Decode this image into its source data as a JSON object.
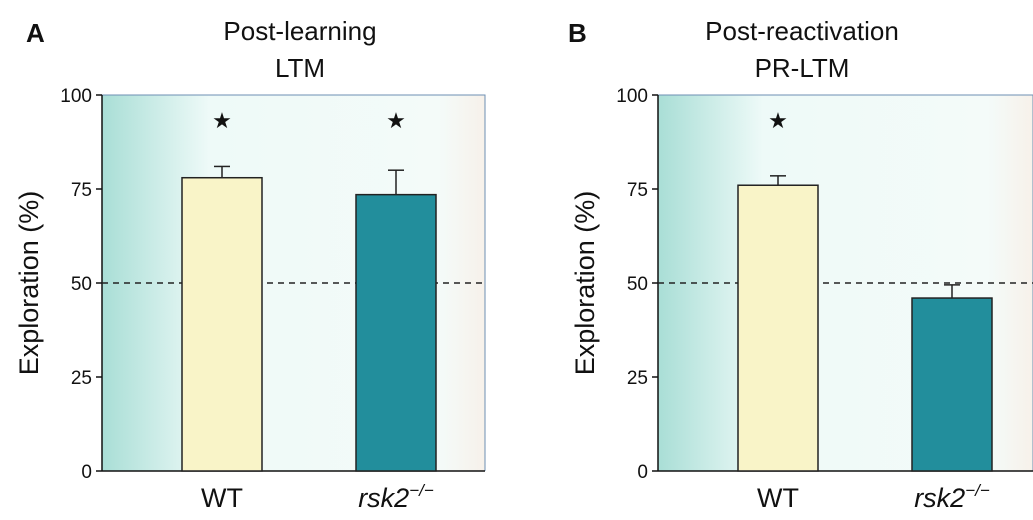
{
  "colors": {
    "wt_fill": "#f9f4c8",
    "ko_fill": "#228e9c",
    "bar_stroke": "#222222",
    "plot_border": "#6c8fb3",
    "bg_left": "#a9ded6",
    "bg_mid": "#eefaf8",
    "bg_right": "#f7f1ea"
  },
  "chart_data": [
    {
      "type": "bar",
      "panel_letter": "A",
      "title": "Post-learning",
      "subtitle": "LTM",
      "ylabel": "Exploration (%)",
      "xlabel": "",
      "ylim": [
        0,
        100
      ],
      "yticks": [
        0,
        25,
        50,
        75,
        100
      ],
      "reference_line": 50,
      "categories": [
        "WT",
        "rsk2"
      ],
      "category_superscripts": [
        "",
        "−/−"
      ],
      "category_italic": [
        false,
        true
      ],
      "values": [
        78,
        73.5
      ],
      "errors": [
        3,
        6.5
      ],
      "significance": [
        "★",
        "★"
      ],
      "grid": false
    },
    {
      "type": "bar",
      "panel_letter": "B",
      "title": "Post-reactivation",
      "subtitle": "PR-LTM",
      "ylabel": "Exploration (%)",
      "xlabel": "",
      "ylim": [
        0,
        100
      ],
      "yticks": [
        0,
        25,
        50,
        75,
        100
      ],
      "reference_line": 50,
      "categories": [
        "WT",
        "rsk2"
      ],
      "category_superscripts": [
        "",
        "−/−"
      ],
      "category_italic": [
        false,
        true
      ],
      "values": [
        76,
        46
      ],
      "errors": [
        2.5,
        3.5
      ],
      "significance": [
        "★",
        ""
      ],
      "grid": false
    }
  ]
}
